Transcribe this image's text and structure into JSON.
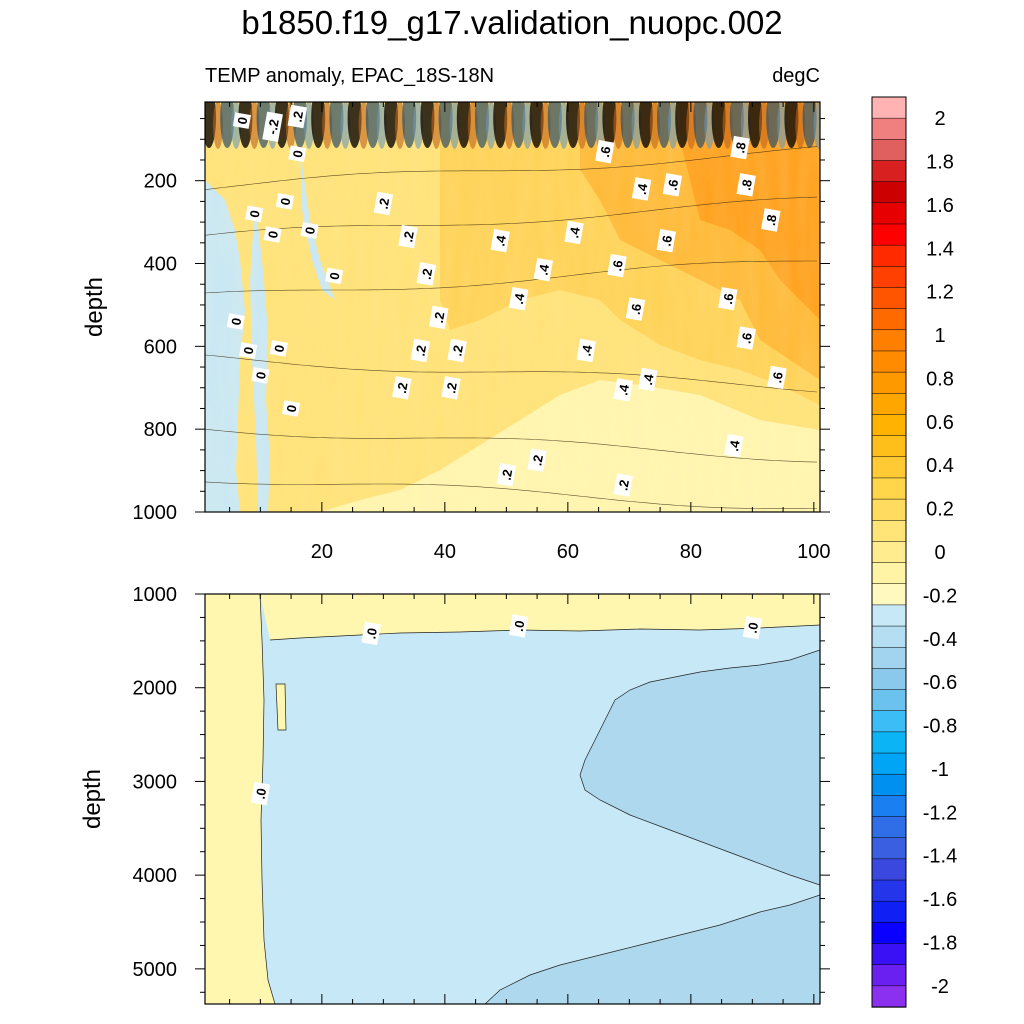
{
  "title": "b1850.f19_g17.validation_nuopc.002",
  "subtitle_left": "TEMP anomaly, EPAC_18S-18N",
  "subtitle_right": "degC",
  "chart_data": [
    {
      "type": "heatmap",
      "panel": "upper",
      "variable": "TEMP anomaly",
      "units": "degC",
      "region": "EPAC_18S-18N",
      "x": {
        "ticks": [
          20,
          40,
          60,
          80,
          100
        ],
        "range": [
          1,
          101
        ]
      },
      "y": {
        "label": "depth",
        "ticks": [
          200,
          400,
          600,
          800,
          1000
        ],
        "range": [
          10,
          1000
        ],
        "reversed": true
      },
      "contour_labels": [
        {
          "x": 7,
          "depth": 55,
          "text": "0"
        },
        {
          "x": 12,
          "depth": 70,
          "text": "-.2"
        },
        {
          "x": 16,
          "depth": 45,
          "text": ".2"
        },
        {
          "x": 16,
          "depth": 135,
          "text": "0"
        },
        {
          "x": 9,
          "depth": 280,
          "text": "0"
        },
        {
          "x": 14,
          "depth": 250,
          "text": "0"
        },
        {
          "x": 12,
          "depth": 330,
          "text": "0"
        },
        {
          "x": 18,
          "depth": 320,
          "text": "0"
        },
        {
          "x": 22,
          "depth": 430,
          "text": "0"
        },
        {
          "x": 6,
          "depth": 540,
          "text": "0"
        },
        {
          "x": 8,
          "depth": 610,
          "text": "0"
        },
        {
          "x": 13,
          "depth": 605,
          "text": "0"
        },
        {
          "x": 10,
          "depth": 670,
          "text": "0"
        },
        {
          "x": 15,
          "depth": 750,
          "text": "0"
        },
        {
          "x": 30,
          "depth": 255,
          "text": ".2"
        },
        {
          "x": 34,
          "depth": 335,
          "text": ".2"
        },
        {
          "x": 37,
          "depth": 425,
          "text": ".2"
        },
        {
          "x": 39,
          "depth": 530,
          "text": ".2"
        },
        {
          "x": 36,
          "depth": 610,
          "text": ".2"
        },
        {
          "x": 42,
          "depth": 610,
          "text": ".2"
        },
        {
          "x": 33,
          "depth": 700,
          "text": ".2"
        },
        {
          "x": 41,
          "depth": 700,
          "text": ".2"
        },
        {
          "x": 50,
          "depth": 910,
          "text": ".2"
        },
        {
          "x": 55,
          "depth": 875,
          "text": ".2"
        },
        {
          "x": 69,
          "depth": 935,
          "text": ".2"
        },
        {
          "x": 49,
          "depth": 345,
          "text": ".4"
        },
        {
          "x": 52,
          "depth": 485,
          "text": ".4"
        },
        {
          "x": 56,
          "depth": 415,
          "text": ".4"
        },
        {
          "x": 61,
          "depth": 325,
          "text": ".4"
        },
        {
          "x": 63,
          "depth": 610,
          "text": ".4"
        },
        {
          "x": 72,
          "depth": 220,
          "text": ".4"
        },
        {
          "x": 69,
          "depth": 705,
          "text": ".4"
        },
        {
          "x": 73,
          "depth": 680,
          "text": ".4"
        },
        {
          "x": 87,
          "depth": 840,
          "text": ".4"
        },
        {
          "x": 66,
          "depth": 130,
          "text": ".6"
        },
        {
          "x": 77,
          "depth": 210,
          "text": ".6"
        },
        {
          "x": 68,
          "depth": 405,
          "text": ".6"
        },
        {
          "x": 71,
          "depth": 510,
          "text": ".6"
        },
        {
          "x": 76,
          "depth": 345,
          "text": ".6"
        },
        {
          "x": 86,
          "depth": 485,
          "text": ".6"
        },
        {
          "x": 89,
          "depth": 580,
          "text": ".6"
        },
        {
          "x": 94,
          "depth": 675,
          "text": ".6"
        },
        {
          "x": 88,
          "depth": 120,
          "text": ".8"
        },
        {
          "x": 89,
          "depth": 210,
          "text": ".8"
        },
        {
          "x": 93,
          "depth": 295,
          "text": ".8"
        }
      ]
    },
    {
      "type": "heatmap",
      "panel": "lower",
      "variable": "TEMP anomaly",
      "units": "degC",
      "region": "EPAC_18S-18N",
      "x": {
        "range": [
          1,
          101
        ]
      },
      "y": {
        "label": "depth",
        "ticks": [
          1000,
          2000,
          3000,
          4000,
          5000
        ],
        "range": [
          1000,
          5375
        ],
        "reversed": true
      },
      "contour_labels": [
        {
          "x": 28,
          "depth": 1420,
          "text": ".0"
        },
        {
          "x": 52,
          "depth": 1340,
          "text": ".0"
        },
        {
          "x": 90,
          "depth": 1360,
          "text": ".0"
        },
        {
          "x": 10,
          "depth": 3130,
          "text": ".0"
        }
      ]
    }
  ],
  "colorbar": {
    "labels": [
      "2",
      "1.8",
      "1.6",
      "1.4",
      "1.2",
      "1",
      "0.8",
      "0.6",
      "0.4",
      "0.2",
      "0",
      "-0.2",
      "-0.4",
      "-0.6",
      "-0.8",
      "-1",
      "-1.2",
      "-1.4",
      "-1.6",
      "-1.8",
      "-2"
    ],
    "colors_top_to_bottom": [
      "#ffb3b3",
      "#f08080",
      "#e06060",
      "#d82020",
      "#cc0000",
      "#e60000",
      "#ff0000",
      "#ff2a00",
      "#ff4000",
      "#ff5500",
      "#ff6a00",
      "#ff7f00",
      "#ff8c00",
      "#ff9900",
      "#ffa600",
      "#ffb300",
      "#ffbf1a",
      "#ffca33",
      "#ffd54a",
      "#ffdc60",
      "#ffe477",
      "#ffec8f",
      "#fff3a6",
      "#fff9c0",
      "#c7e8f7",
      "#b5def3",
      "#a3d4ef",
      "#8ac8ec",
      "#6cc2ef",
      "#3cbdf5",
      "#0ab4f5",
      "#00a5f5",
      "#0090f0",
      "#1a7ff0",
      "#2f6ee6",
      "#3a5fe0",
      "#3a48e0",
      "#2535ea",
      "#1020f5",
      "#0a00ff",
      "#3a10f5",
      "#6a20f0",
      "#8a30ee"
    ]
  }
}
